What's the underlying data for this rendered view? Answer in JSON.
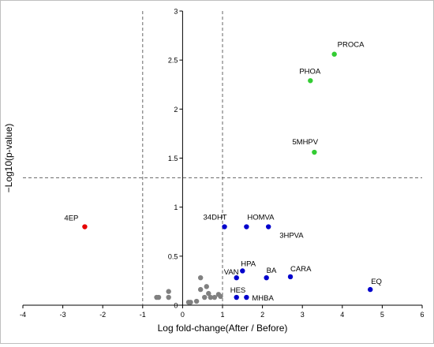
{
  "chart_data": {
    "type": "scatter",
    "title": "",
    "xlabel": "Log fold-change(After / Before)",
    "ylabel": "−Log10(p-value)",
    "xlim": [
      -4,
      6
    ],
    "ylim": [
      0,
      3
    ],
    "xticks": [
      "-4",
      "-3",
      "-2",
      "-1",
      "0",
      "1",
      "2",
      "3",
      "4",
      "5",
      "6"
    ],
    "yticks": [
      "0",
      "0.5",
      "1",
      "1.5",
      "2",
      "2.5",
      "3"
    ],
    "grid": false,
    "threshold_lines": {
      "x": [
        -1,
        1
      ],
      "y": 1.3
    },
    "colors": {
      "up": "#33cc33",
      "down": "#e60000",
      "highlight": "#0000cc",
      "other": "#808080"
    },
    "points": [
      {
        "label": "PROCA",
        "x": 3.8,
        "y": 2.56,
        "group": "up"
      },
      {
        "label": "PHOA",
        "x": 3.2,
        "y": 2.29,
        "group": "up"
      },
      {
        "label": "5MHPV",
        "x": 3.3,
        "y": 1.56,
        "group": "up"
      },
      {
        "label": "4EP",
        "x": -2.45,
        "y": 0.8,
        "group": "down"
      },
      {
        "label": "34DHT",
        "x": 1.05,
        "y": 0.8,
        "group": "highlight"
      },
      {
        "label": "HOMVA",
        "x": 1.6,
        "y": 0.8,
        "group": "highlight"
      },
      {
        "label": "3HPVA",
        "x": 2.15,
        "y": 0.8,
        "group": "highlight"
      },
      {
        "label": "HPA",
        "x": 1.5,
        "y": 0.35,
        "group": "highlight"
      },
      {
        "label": "VAN",
        "x": 1.35,
        "y": 0.28,
        "group": "highlight"
      },
      {
        "label": "BA",
        "x": 2.1,
        "y": 0.28,
        "group": "highlight"
      },
      {
        "label": "CARA",
        "x": 2.7,
        "y": 0.29,
        "group": "highlight"
      },
      {
        "label": "HES",
        "x": 1.35,
        "y": 0.08,
        "group": "highlight"
      },
      {
        "label": "MHBA",
        "x": 1.6,
        "y": 0.08,
        "group": "highlight"
      },
      {
        "label": "EQ",
        "x": 4.7,
        "y": 0.16,
        "group": "highlight"
      },
      {
        "label": "",
        "x": -0.65,
        "y": 0.08,
        "group": "other"
      },
      {
        "label": "",
        "x": -0.6,
        "y": 0.08,
        "group": "other"
      },
      {
        "label": "",
        "x": -0.35,
        "y": 0.14,
        "group": "other"
      },
      {
        "label": "",
        "x": -0.35,
        "y": 0.08,
        "group": "other"
      },
      {
        "label": "",
        "x": 0.15,
        "y": 0.03,
        "group": "other"
      },
      {
        "label": "",
        "x": 0.2,
        "y": 0.03,
        "group": "other"
      },
      {
        "label": "",
        "x": 0.35,
        "y": 0.04,
        "group": "other"
      },
      {
        "label": "",
        "x": 0.45,
        "y": 0.28,
        "group": "other"
      },
      {
        "label": "",
        "x": 0.45,
        "y": 0.16,
        "group": "other"
      },
      {
        "label": "",
        "x": 0.55,
        "y": 0.08,
        "group": "other"
      },
      {
        "label": "",
        "x": 0.6,
        "y": 0.19,
        "group": "other"
      },
      {
        "label": "",
        "x": 0.65,
        "y": 0.12,
        "group": "other"
      },
      {
        "label": "",
        "x": 0.7,
        "y": 0.08,
        "group": "other"
      },
      {
        "label": "",
        "x": 0.8,
        "y": 0.08,
        "group": "other"
      },
      {
        "label": "",
        "x": 0.9,
        "y": 0.11,
        "group": "other"
      },
      {
        "label": "",
        "x": 0.95,
        "y": 0.09,
        "group": "other"
      }
    ]
  }
}
